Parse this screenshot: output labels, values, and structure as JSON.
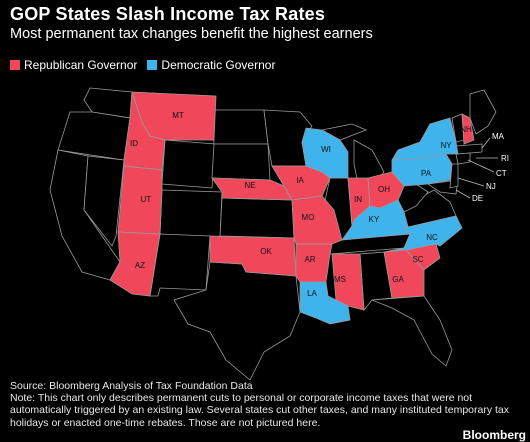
{
  "title": "GOP States Slash Income Tax Rates",
  "subtitle": "Most permanent tax changes benefit the highest earners",
  "legend": {
    "republican_label": "Republican Governor",
    "democratic_label": "Democratic Governor",
    "republican_color": "#f0475b",
    "democratic_color": "#3fb3ec"
  },
  "map": {
    "base_color": "#000000",
    "border_color": "#9a9a9a",
    "state_labels": {
      "MT": "MT",
      "ID": "ID",
      "UT": "UT",
      "AZ": "AZ",
      "NE": "NE",
      "IA": "IA",
      "MO": "MO",
      "OK": "OK",
      "AR": "AR",
      "MS": "MS",
      "GA": "GA",
      "SC": "SC",
      "IN": "IN",
      "OH": "OH",
      "NH": "NH",
      "WI": "WI",
      "KY": "KY",
      "LA": "LA",
      "NC": "NC",
      "PA": "PA",
      "NY": "NY"
    },
    "external_labels": {
      "MA": "MA",
      "RI": "RI",
      "CT": "CT",
      "NJ": "NJ",
      "DE": "DE"
    },
    "republican_states": [
      "MT",
      "ID",
      "UT",
      "AZ",
      "NE",
      "IA",
      "MO",
      "OK",
      "AR",
      "MS",
      "GA",
      "SC",
      "IN",
      "OH",
      "NH"
    ],
    "democratic_states": [
      "WI",
      "KY",
      "LA",
      "NC",
      "PA",
      "NY"
    ]
  },
  "source": "Source: Bloomberg Analysis of Tax Foundation Data",
  "note": "Note: This chart only describes permanent cuts to personal or corporate income taxes that were not automatically triggered by an existing law. Several states cut other taxes, and many instituted temporary tax holidays or enacted one-time rebates. Those are not pictured here.",
  "brand": "Bloomberg"
}
